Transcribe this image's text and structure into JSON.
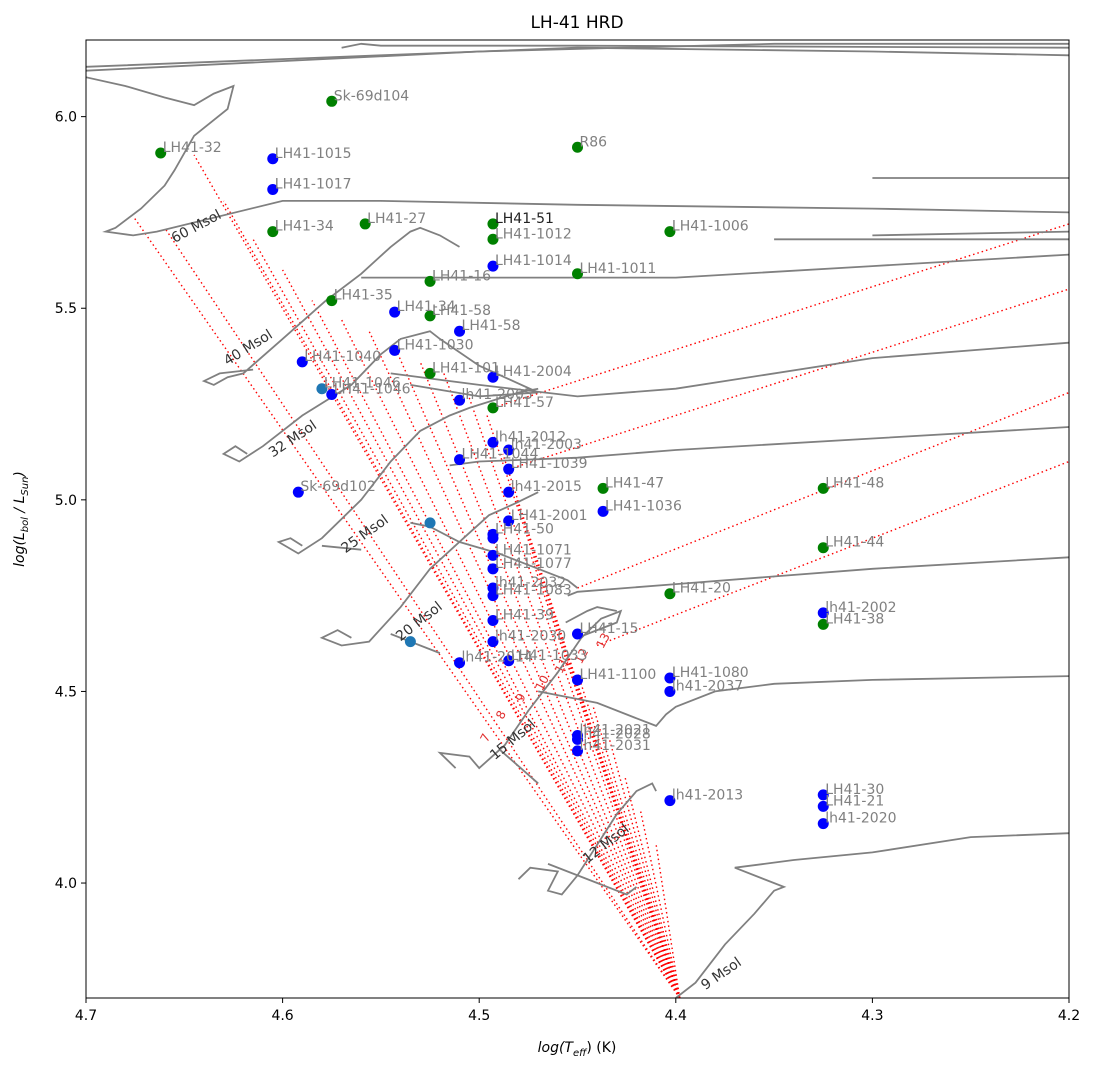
{
  "chart_data": {
    "type": "scatter",
    "title": "LH-41 HRD",
    "xlabel_parts": [
      "log(T",
      "eff",
      ") (K)"
    ],
    "ylabel_parts": [
      "log(L",
      "bol",
      " / L",
      "Sun",
      ")"
    ],
    "xlim": [
      4.7,
      4.2
    ],
    "ylim": [
      3.7,
      6.2
    ],
    "xticks": [
      "4.7",
      "4.6",
      "4.5",
      "4.4",
      "4.3",
      "4.2"
    ],
    "yticks": [
      "4.0",
      "4.5",
      "5.0",
      "5.5",
      "6.0"
    ],
    "colors": {
      "green": "#008000",
      "blue": "#0000ff",
      "steel": "#1f77b4",
      "track": "#808080",
      "isochrone": "#ff0000"
    },
    "points": [
      {
        "name": "Sk-69d104",
        "x": 4.575,
        "y": 6.04,
        "c": "green"
      },
      {
        "name": "LH41-32",
        "x": 4.662,
        "y": 5.905,
        "c": "green"
      },
      {
        "name": "LH41-1015",
        "x": 4.605,
        "y": 5.89,
        "c": "blue"
      },
      {
        "name": "R86",
        "x": 4.45,
        "y": 5.92,
        "c": "green"
      },
      {
        "name": "LH41-1017",
        "x": 4.605,
        "y": 5.81,
        "c": "blue"
      },
      {
        "name": "LH41-34",
        "x": 4.605,
        "y": 5.7,
        "c": "green"
      },
      {
        "name": "LH41-27",
        "x": 4.558,
        "y": 5.72,
        "c": "green"
      },
      {
        "name": "LH41-51",
        "x": 4.493,
        "y": 5.72,
        "c": "green",
        "dark": true
      },
      {
        "name": "LH41-1012",
        "x": 4.493,
        "y": 5.68,
        "c": "green"
      },
      {
        "name": "LH41-1006",
        "x": 4.403,
        "y": 5.7,
        "c": "green"
      },
      {
        "name": "LH41-1014",
        "x": 4.493,
        "y": 5.61,
        "c": "blue"
      },
      {
        "name": "LH41-1011",
        "x": 4.45,
        "y": 5.59,
        "c": "green"
      },
      {
        "name": "LH41-16",
        "x": 4.525,
        "y": 5.57,
        "c": "green"
      },
      {
        "name": "LH41-35",
        "x": 4.575,
        "y": 5.52,
        "c": "green"
      },
      {
        "name": "LH41-34",
        "x": 4.543,
        "y": 5.49,
        "c": "blue"
      },
      {
        "name": "LH41-58",
        "x": 4.525,
        "y": 5.48,
        "c": "green"
      },
      {
        "name": "LH41-58",
        "x": 4.51,
        "y": 5.44,
        "c": "blue"
      },
      {
        "name": "LH41-1040",
        "x": 4.59,
        "y": 5.36,
        "c": "blue"
      },
      {
        "name": "LH41-1030",
        "x": 4.543,
        "y": 5.39,
        "c": "blue"
      },
      {
        "name": "LH41-1046",
        "x": 4.58,
        "y": 5.29,
        "c": "steel"
      },
      {
        "name": "LH41-1046",
        "x": 4.575,
        "y": 5.275,
        "c": "blue"
      },
      {
        "name": "LH41-101",
        "x": 4.525,
        "y": 5.33,
        "c": "green"
      },
      {
        "name": "LH41-2004",
        "x": 4.493,
        "y": 5.32,
        "c": "blue"
      },
      {
        "name": "lh41-2005",
        "x": 4.51,
        "y": 5.26,
        "c": "blue"
      },
      {
        "name": "LH41-57",
        "x": 4.493,
        "y": 5.24,
        "c": "green"
      },
      {
        "name": "lh41-2012",
        "x": 4.493,
        "y": 5.15,
        "c": "blue"
      },
      {
        "name": "lh41-2003",
        "x": 4.485,
        "y": 5.13,
        "c": "blue"
      },
      {
        "name": "LH41-1044",
        "x": 4.51,
        "y": 5.105,
        "c": "blue"
      },
      {
        "name": "LH41-1039",
        "x": 4.485,
        "y": 5.08,
        "c": "blue"
      },
      {
        "name": "lh41-2015",
        "x": 4.485,
        "y": 5.02,
        "c": "blue"
      },
      {
        "name": "LH41-47",
        "x": 4.437,
        "y": 5.03,
        "c": "green"
      },
      {
        "name": "LH41-48",
        "x": 4.325,
        "y": 5.03,
        "c": "green"
      },
      {
        "name": "Sk-69d102",
        "x": 4.592,
        "y": 5.02,
        "c": "blue"
      },
      {
        "name": "LH41-1036",
        "x": 4.437,
        "y": 4.97,
        "c": "blue"
      },
      {
        "name": "LH41-2001",
        "x": 4.485,
        "y": 4.945,
        "c": "blue"
      },
      {
        "name": "",
        "x": 4.525,
        "y": 4.94,
        "c": "steel"
      },
      {
        "name": "LH41-50",
        "x": 4.493,
        "y": 4.91,
        "c": "blue"
      },
      {
        "name": "",
        "x": 4.493,
        "y": 4.9,
        "c": "blue"
      },
      {
        "name": "LH41-44",
        "x": 4.325,
        "y": 4.875,
        "c": "green"
      },
      {
        "name": "LH41-1071",
        "x": 4.493,
        "y": 4.855,
        "c": "blue"
      },
      {
        "name": "LH41-1077",
        "x": 4.493,
        "y": 4.82,
        "c": "blue"
      },
      {
        "name": "lh41-2032",
        "x": 4.493,
        "y": 4.77,
        "c": "blue"
      },
      {
        "name": "LH41-1083",
        "x": 4.493,
        "y": 4.75,
        "c": "blue"
      },
      {
        "name": "LH41-20",
        "x": 4.403,
        "y": 4.755,
        "c": "green"
      },
      {
        "name": "lh41-2002",
        "x": 4.325,
        "y": 4.705,
        "c": "blue"
      },
      {
        "name": "LH41-38",
        "x": 4.325,
        "y": 4.675,
        "c": "green"
      },
      {
        "name": "LH41-39",
        "x": 4.493,
        "y": 4.685,
        "c": "blue"
      },
      {
        "name": "lh41-2030",
        "x": 4.493,
        "y": 4.63,
        "c": "blue"
      },
      {
        "name": "LH41-15",
        "x": 4.45,
        "y": 4.65,
        "c": "blue"
      },
      {
        "name": "",
        "x": 4.535,
        "y": 4.63,
        "c": "steel"
      },
      {
        "name": "lh41-2014",
        "x": 4.51,
        "y": 4.575,
        "c": "blue"
      },
      {
        "name": "LH41-1033",
        "x": 4.485,
        "y": 4.58,
        "c": "blue"
      },
      {
        "name": "LH41-1100",
        "x": 4.45,
        "y": 4.53,
        "c": "blue"
      },
      {
        "name": "LH41-1080",
        "x": 4.403,
        "y": 4.535,
        "c": "blue"
      },
      {
        "name": "lh41-2037",
        "x": 4.403,
        "y": 4.5,
        "c": "blue"
      },
      {
        "name": "lh41-2021",
        "x": 4.45,
        "y": 4.385,
        "c": "blue"
      },
      {
        "name": "lh41-2028",
        "x": 4.45,
        "y": 4.375,
        "c": "blue"
      },
      {
        "name": "lh41-2031",
        "x": 4.45,
        "y": 4.345,
        "c": "blue"
      },
      {
        "name": "lh41-2013",
        "x": 4.403,
        "y": 4.215,
        "c": "blue"
      },
      {
        "name": "LH41-30",
        "x": 4.325,
        "y": 4.23,
        "c": "blue"
      },
      {
        "name": "LH41-21",
        "x": 4.325,
        "y": 4.2,
        "c": "blue"
      },
      {
        "name": "lh41-2020",
        "x": 4.325,
        "y": 4.155,
        "c": "blue"
      }
    ],
    "track_labels": [
      {
        "text": "60 Msol",
        "x": 4.655,
        "y": 5.67,
        "rot": -28
      },
      {
        "text": "40 Msol",
        "x": 4.628,
        "y": 5.35,
        "rot": -32
      },
      {
        "text": "32 Msol",
        "x": 4.605,
        "y": 5.11,
        "rot": -34
      },
      {
        "text": "25 Msol",
        "x": 4.568,
        "y": 4.86,
        "rot": -36
      },
      {
        "text": "20 Msol",
        "x": 4.54,
        "y": 4.63,
        "rot": -38
      },
      {
        "text": "15 Msol",
        "x": 4.492,
        "y": 4.32,
        "rot": -40
      },
      {
        "text": "12 Msol",
        "x": 4.445,
        "y": 4.05,
        "rot": -38
      },
      {
        "text": "9 Msol",
        "x": 4.385,
        "y": 3.72,
        "rot": -35
      }
    ],
    "iso_labels": [
      {
        "text": "7",
        "x": 4.496,
        "y": 4.365
      },
      {
        "text": "8",
        "x": 4.488,
        "y": 4.425
      },
      {
        "text": "9",
        "x": 4.478,
        "y": 4.47
      },
      {
        "text": "10",
        "x": 4.468,
        "y": 4.5
      },
      {
        "text": "11",
        "x": 4.458,
        "y": 4.545
      },
      {
        "text": "12",
        "x": 4.448,
        "y": 4.57
      },
      {
        "text": "13",
        "x": 4.437,
        "y": 4.61
      }
    ]
  }
}
